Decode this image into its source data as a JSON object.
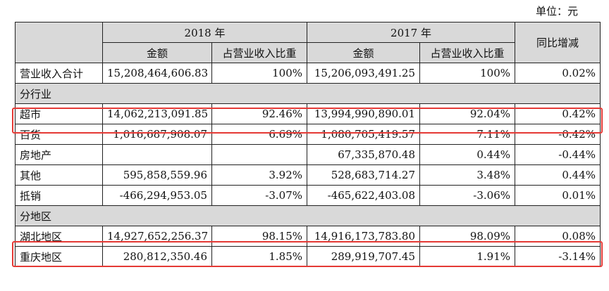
{
  "unit_label": "单位：元",
  "header": {
    "year_2018": "2018 年",
    "year_2017": "2017 年",
    "amount": "金额",
    "ratio": "占营业收入比重",
    "yoy": "同比增减"
  },
  "total": {
    "label": "营业收入合计",
    "amt_2018": "15,208,464,606.83",
    "pct_2018": "100%",
    "amt_2017": "15,206,093,491.25",
    "pct_2017": "100%",
    "yoy": "0.02%"
  },
  "section_industry": "分行业",
  "industry_rows": [
    {
      "label": "超市",
      "amt_2018": "14,062,213,091.85",
      "pct_2018": "92.46%",
      "amt_2017": "13,994,990,890.01",
      "pct_2017": "92.04%",
      "yoy": "0.42%"
    },
    {
      "label": "百货",
      "amt_2018": "1,016,687,908.07",
      "pct_2018": "6.69%",
      "amt_2017": "1,080,705,419.57",
      "pct_2017": "7.11%",
      "yoy": "-0.42%"
    },
    {
      "label": "房地产",
      "amt_2018": "",
      "pct_2018": "",
      "amt_2017": "67,335,870.48",
      "pct_2017": "0.44%",
      "yoy": "-0.44%"
    },
    {
      "label": "其他",
      "amt_2018": "595,858,559.96",
      "pct_2018": "3.92%",
      "amt_2017": "528,683,714.27",
      "pct_2017": "3.48%",
      "yoy": "0.44%"
    },
    {
      "label": "抵销",
      "amt_2018": "-466,294,953.05",
      "pct_2018": "-3.07%",
      "amt_2017": "-465,622,403.08",
      "pct_2017": "-3.06%",
      "yoy": "0.01%"
    }
  ],
  "section_region": "分地区",
  "region_rows": [
    {
      "label": "湖北地区",
      "amt_2018": "14,927,652,256.37",
      "pct_2018": "98.15%",
      "amt_2017": "14,916,173,783.80",
      "pct_2017": "98.09%",
      "yoy": "0.08%"
    },
    {
      "label": "重庆地区",
      "amt_2018": "280,812,350.46",
      "pct_2018": "1.85%",
      "amt_2017": "289,919,707.45",
      "pct_2017": "1.91%",
      "yoy": "-3.14%"
    }
  ],
  "highlight_color": "#e53935"
}
